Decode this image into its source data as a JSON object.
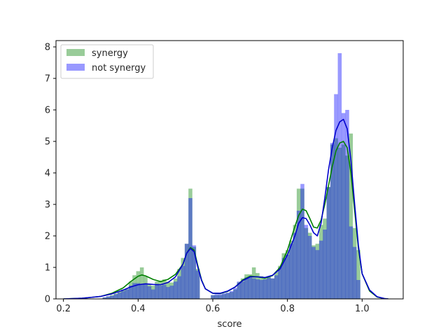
{
  "chart_data": {
    "type": "bar",
    "xlabel": "score",
    "ylabel": "",
    "xlim": [
      0.18,
      1.11
    ],
    "ylim": [
      0,
      8.2
    ],
    "xticks": [
      "0.2",
      "0.4",
      "0.6",
      "0.8",
      "1.0"
    ],
    "xtick_values": [
      0.2,
      0.4,
      0.6,
      0.8,
      1.0
    ],
    "yticks": [
      "0",
      "1",
      "2",
      "3",
      "4",
      "5",
      "6",
      "7",
      "8"
    ],
    "ytick_values": [
      0,
      1,
      2,
      3,
      4,
      5,
      6,
      7,
      8
    ],
    "legend_position": "upper-left",
    "grid": false,
    "bin_width": 0.0104,
    "series": [
      {
        "name": "synergy",
        "hist_color": "#008000",
        "line_color": "#008000",
        "bins": [
          [
            0.31,
            0.05
          ],
          [
            0.32,
            0.08
          ],
          [
            0.33,
            0.12
          ],
          [
            0.34,
            0.17
          ],
          [
            0.35,
            0.25
          ],
          [
            0.36,
            0.3
          ],
          [
            0.37,
            0.32
          ],
          [
            0.38,
            0.55
          ],
          [
            0.39,
            0.75
          ],
          [
            0.4,
            0.88
          ],
          [
            0.41,
            1.0
          ],
          [
            0.42,
            0.72
          ],
          [
            0.43,
            0.48
          ],
          [
            0.44,
            0.42
          ],
          [
            0.45,
            0.55
          ],
          [
            0.46,
            0.58
          ],
          [
            0.47,
            0.62
          ],
          [
            0.48,
            0.55
          ],
          [
            0.49,
            0.52
          ],
          [
            0.5,
            0.65
          ],
          [
            0.51,
            0.95
          ],
          [
            0.52,
            1.3
          ],
          [
            0.53,
            1.75
          ],
          [
            0.54,
            3.5
          ],
          [
            0.55,
            1.65
          ],
          [
            0.56,
            0.95
          ],
          [
            0.6,
            0.12
          ],
          [
            0.61,
            0.12
          ],
          [
            0.62,
            0.12
          ],
          [
            0.63,
            0.15
          ],
          [
            0.64,
            0.18
          ],
          [
            0.65,
            0.22
          ],
          [
            0.66,
            0.3
          ],
          [
            0.67,
            0.52
          ],
          [
            0.68,
            0.65
          ],
          [
            0.69,
            0.78
          ],
          [
            0.7,
            0.78
          ],
          [
            0.71,
            1.0
          ],
          [
            0.72,
            0.82
          ],
          [
            0.73,
            0.72
          ],
          [
            0.74,
            0.65
          ],
          [
            0.75,
            0.72
          ],
          [
            0.76,
            0.65
          ],
          [
            0.77,
            0.85
          ],
          [
            0.78,
            1.05
          ],
          [
            0.79,
            1.45
          ],
          [
            0.8,
            1.55
          ],
          [
            0.81,
            1.85
          ],
          [
            0.82,
            2.35
          ],
          [
            0.83,
            3.5
          ],
          [
            0.84,
            3.5
          ],
          [
            0.85,
            2.25
          ],
          [
            0.86,
            2.1
          ],
          [
            0.87,
            1.7
          ],
          [
            0.88,
            1.75
          ],
          [
            0.89,
            2.35
          ],
          [
            0.9,
            2.55
          ],
          [
            0.91,
            3.55
          ],
          [
            0.92,
            4.9
          ],
          [
            0.93,
            5.1
          ],
          [
            0.94,
            4.8
          ],
          [
            0.95,
            4.9
          ],
          [
            0.96,
            4.55
          ],
          [
            0.97,
            5.25
          ],
          [
            0.98,
            2.25
          ],
          [
            0.99,
            1.55
          ]
        ],
        "kde": [
          [
            0.2,
            0.0
          ],
          [
            0.25,
            0.02
          ],
          [
            0.3,
            0.08
          ],
          [
            0.33,
            0.18
          ],
          [
            0.36,
            0.35
          ],
          [
            0.38,
            0.55
          ],
          [
            0.4,
            0.72
          ],
          [
            0.41,
            0.76
          ],
          [
            0.42,
            0.73
          ],
          [
            0.44,
            0.62
          ],
          [
            0.46,
            0.55
          ],
          [
            0.48,
            0.62
          ],
          [
            0.5,
            0.78
          ],
          [
            0.52,
            1.1
          ],
          [
            0.53,
            1.45
          ],
          [
            0.54,
            1.63
          ],
          [
            0.55,
            1.55
          ],
          [
            0.56,
            1.05
          ],
          [
            0.57,
            0.6
          ],
          [
            0.58,
            0.32
          ],
          [
            0.6,
            0.18
          ],
          [
            0.62,
            0.17
          ],
          [
            0.64,
            0.24
          ],
          [
            0.66,
            0.38
          ],
          [
            0.68,
            0.6
          ],
          [
            0.7,
            0.72
          ],
          [
            0.72,
            0.7
          ],
          [
            0.74,
            0.66
          ],
          [
            0.76,
            0.74
          ],
          [
            0.78,
            1.0
          ],
          [
            0.8,
            1.55
          ],
          [
            0.82,
            2.3
          ],
          [
            0.83,
            2.65
          ],
          [
            0.84,
            2.85
          ],
          [
            0.85,
            2.8
          ],
          [
            0.86,
            2.55
          ],
          [
            0.87,
            2.28
          ],
          [
            0.88,
            2.25
          ],
          [
            0.89,
            2.5
          ],
          [
            0.9,
            3.0
          ],
          [
            0.91,
            3.6
          ],
          [
            0.92,
            4.2
          ],
          [
            0.93,
            4.7
          ],
          [
            0.94,
            4.95
          ],
          [
            0.95,
            5.0
          ],
          [
            0.96,
            4.8
          ],
          [
            0.97,
            4.0
          ],
          [
            0.98,
            2.8
          ],
          [
            0.99,
            1.6
          ],
          [
            1.0,
            0.8
          ],
          [
            1.02,
            0.25
          ],
          [
            1.04,
            0.06
          ],
          [
            1.06,
            0.01
          ],
          [
            1.07,
            0.0
          ]
        ]
      },
      {
        "name": "not synergy",
        "hist_color": "#0000ff",
        "line_color": "#0000cd",
        "bins": [
          [
            0.31,
            0.05
          ],
          [
            0.32,
            0.08
          ],
          [
            0.33,
            0.1
          ],
          [
            0.34,
            0.15
          ],
          [
            0.35,
            0.2
          ],
          [
            0.36,
            0.25
          ],
          [
            0.37,
            0.3
          ],
          [
            0.38,
            0.42
          ],
          [
            0.39,
            0.5
          ],
          [
            0.4,
            0.5
          ],
          [
            0.41,
            0.45
          ],
          [
            0.42,
            0.48
          ],
          [
            0.43,
            0.4
          ],
          [
            0.44,
            0.3
          ],
          [
            0.45,
            0.45
          ],
          [
            0.46,
            0.42
          ],
          [
            0.47,
            0.45
          ],
          [
            0.48,
            0.38
          ],
          [
            0.49,
            0.42
          ],
          [
            0.5,
            0.55
          ],
          [
            0.51,
            0.72
          ],
          [
            0.52,
            1.05
          ],
          [
            0.53,
            1.75
          ],
          [
            0.54,
            3.2
          ],
          [
            0.55,
            1.7
          ],
          [
            0.56,
            0.9
          ],
          [
            0.6,
            0.12
          ],
          [
            0.61,
            0.15
          ],
          [
            0.62,
            0.15
          ],
          [
            0.63,
            0.18
          ],
          [
            0.64,
            0.2
          ],
          [
            0.65,
            0.25
          ],
          [
            0.66,
            0.35
          ],
          [
            0.67,
            0.55
          ],
          [
            0.68,
            0.55
          ],
          [
            0.69,
            0.68
          ],
          [
            0.7,
            0.68
          ],
          [
            0.71,
            0.65
          ],
          [
            0.72,
            0.62
          ],
          [
            0.73,
            0.6
          ],
          [
            0.74,
            0.62
          ],
          [
            0.75,
            0.68
          ],
          [
            0.76,
            0.65
          ],
          [
            0.77,
            0.75
          ],
          [
            0.78,
            1.0
          ],
          [
            0.79,
            1.3
          ],
          [
            0.8,
            1.4
          ],
          [
            0.81,
            1.75
          ],
          [
            0.82,
            2.1
          ],
          [
            0.83,
            2.8
          ],
          [
            0.84,
            3.65
          ],
          [
            0.85,
            2.35
          ],
          [
            0.86,
            2.0
          ],
          [
            0.87,
            1.65
          ],
          [
            0.88,
            1.55
          ],
          [
            0.89,
            1.85
          ],
          [
            0.9,
            2.2
          ],
          [
            0.91,
            3.55
          ],
          [
            0.92,
            4.95
          ],
          [
            0.93,
            6.5
          ],
          [
            0.94,
            7.8
          ],
          [
            0.95,
            5.9
          ],
          [
            0.96,
            6.0
          ],
          [
            0.97,
            2.3
          ],
          [
            0.98,
            1.65
          ],
          [
            0.99,
            0.6
          ]
        ],
        "kde": [
          [
            0.2,
            0.0
          ],
          [
            0.25,
            0.02
          ],
          [
            0.3,
            0.08
          ],
          [
            0.33,
            0.16
          ],
          [
            0.36,
            0.28
          ],
          [
            0.38,
            0.38
          ],
          [
            0.4,
            0.45
          ],
          [
            0.42,
            0.48
          ],
          [
            0.44,
            0.46
          ],
          [
            0.46,
            0.45
          ],
          [
            0.48,
            0.52
          ],
          [
            0.5,
            0.7
          ],
          [
            0.52,
            1.1
          ],
          [
            0.53,
            1.45
          ],
          [
            0.54,
            1.6
          ],
          [
            0.55,
            1.5
          ],
          [
            0.56,
            1.0
          ],
          [
            0.57,
            0.58
          ],
          [
            0.58,
            0.32
          ],
          [
            0.6,
            0.18
          ],
          [
            0.62,
            0.18
          ],
          [
            0.64,
            0.25
          ],
          [
            0.66,
            0.38
          ],
          [
            0.68,
            0.58
          ],
          [
            0.7,
            0.7
          ],
          [
            0.72,
            0.7
          ],
          [
            0.74,
            0.68
          ],
          [
            0.76,
            0.75
          ],
          [
            0.78,
            0.95
          ],
          [
            0.8,
            1.4
          ],
          [
            0.82,
            2.0
          ],
          [
            0.83,
            2.4
          ],
          [
            0.84,
            2.58
          ],
          [
            0.85,
            2.55
          ],
          [
            0.86,
            2.35
          ],
          [
            0.87,
            2.1
          ],
          [
            0.88,
            2.0
          ],
          [
            0.89,
            2.4
          ],
          [
            0.9,
            3.2
          ],
          [
            0.91,
            4.1
          ],
          [
            0.92,
            4.8
          ],
          [
            0.93,
            5.35
          ],
          [
            0.94,
            5.62
          ],
          [
            0.95,
            5.7
          ],
          [
            0.96,
            5.4
          ],
          [
            0.97,
            4.4
          ],
          [
            0.98,
            3.0
          ],
          [
            0.99,
            1.7
          ],
          [
            1.0,
            0.8
          ],
          [
            1.02,
            0.28
          ],
          [
            1.04,
            0.07
          ],
          [
            1.06,
            0.01
          ],
          [
            1.07,
            0.0
          ]
        ]
      }
    ]
  }
}
